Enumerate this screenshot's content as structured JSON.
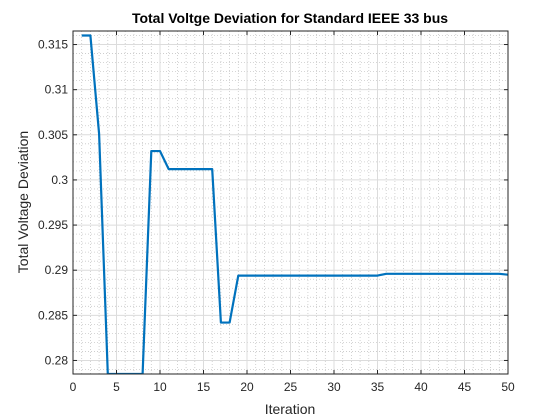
{
  "chart_data": {
    "type": "line",
    "title": "Total Voltge Deviation for Standard IEEE  33 bus",
    "xlabel": "Iteration",
    "ylabel": "Total Voltage Deviation",
    "xlim": [
      0,
      50
    ],
    "ylim": [
      0.2785,
      0.3165
    ],
    "xticks": [
      0,
      5,
      10,
      15,
      20,
      25,
      30,
      35,
      40,
      45,
      50
    ],
    "xtick_labels": [
      "0",
      "5",
      "10",
      "15",
      "20",
      "25",
      "30",
      "35",
      "40",
      "45",
      "50"
    ],
    "yticks": [
      0.28,
      0.285,
      0.29,
      0.295,
      0.3,
      0.305,
      0.31,
      0.315
    ],
    "ytick_labels": [
      "0.28",
      "0.285",
      "0.29",
      "0.295",
      "0.3",
      "0.305",
      "0.31",
      "0.315"
    ],
    "grid": true,
    "minor_grid": true,
    "series_color": "#0072BD",
    "series": [
      {
        "x": [
          1,
          2,
          3,
          4,
          5,
          6,
          7,
          8,
          9,
          10,
          11,
          12,
          13,
          14,
          15,
          16,
          17,
          18,
          19,
          20,
          21,
          22,
          23,
          24,
          25,
          26,
          27,
          28,
          29,
          30,
          31,
          32,
          33,
          34,
          35,
          36,
          37,
          38,
          39,
          40,
          41,
          42,
          43,
          44,
          45,
          46,
          47,
          48,
          49,
          50
        ],
        "y": [
          0.316,
          0.316,
          0.3051,
          0.2785,
          0.2785,
          0.2785,
          0.2785,
          0.2785,
          0.3032,
          0.3032,
          0.3012,
          0.3012,
          0.3012,
          0.3012,
          0.3012,
          0.3012,
          0.2842,
          0.2842,
          0.2894,
          0.2894,
          0.2894,
          0.2894,
          0.2894,
          0.2894,
          0.2894,
          0.2894,
          0.2894,
          0.2894,
          0.2894,
          0.2894,
          0.2894,
          0.2894,
          0.2894,
          0.2894,
          0.2894,
          0.2896,
          0.2896,
          0.2896,
          0.2896,
          0.2896,
          0.2896,
          0.2896,
          0.2896,
          0.2896,
          0.2896,
          0.2896,
          0.2896,
          0.2896,
          0.2896,
          0.2895
        ]
      }
    ]
  }
}
